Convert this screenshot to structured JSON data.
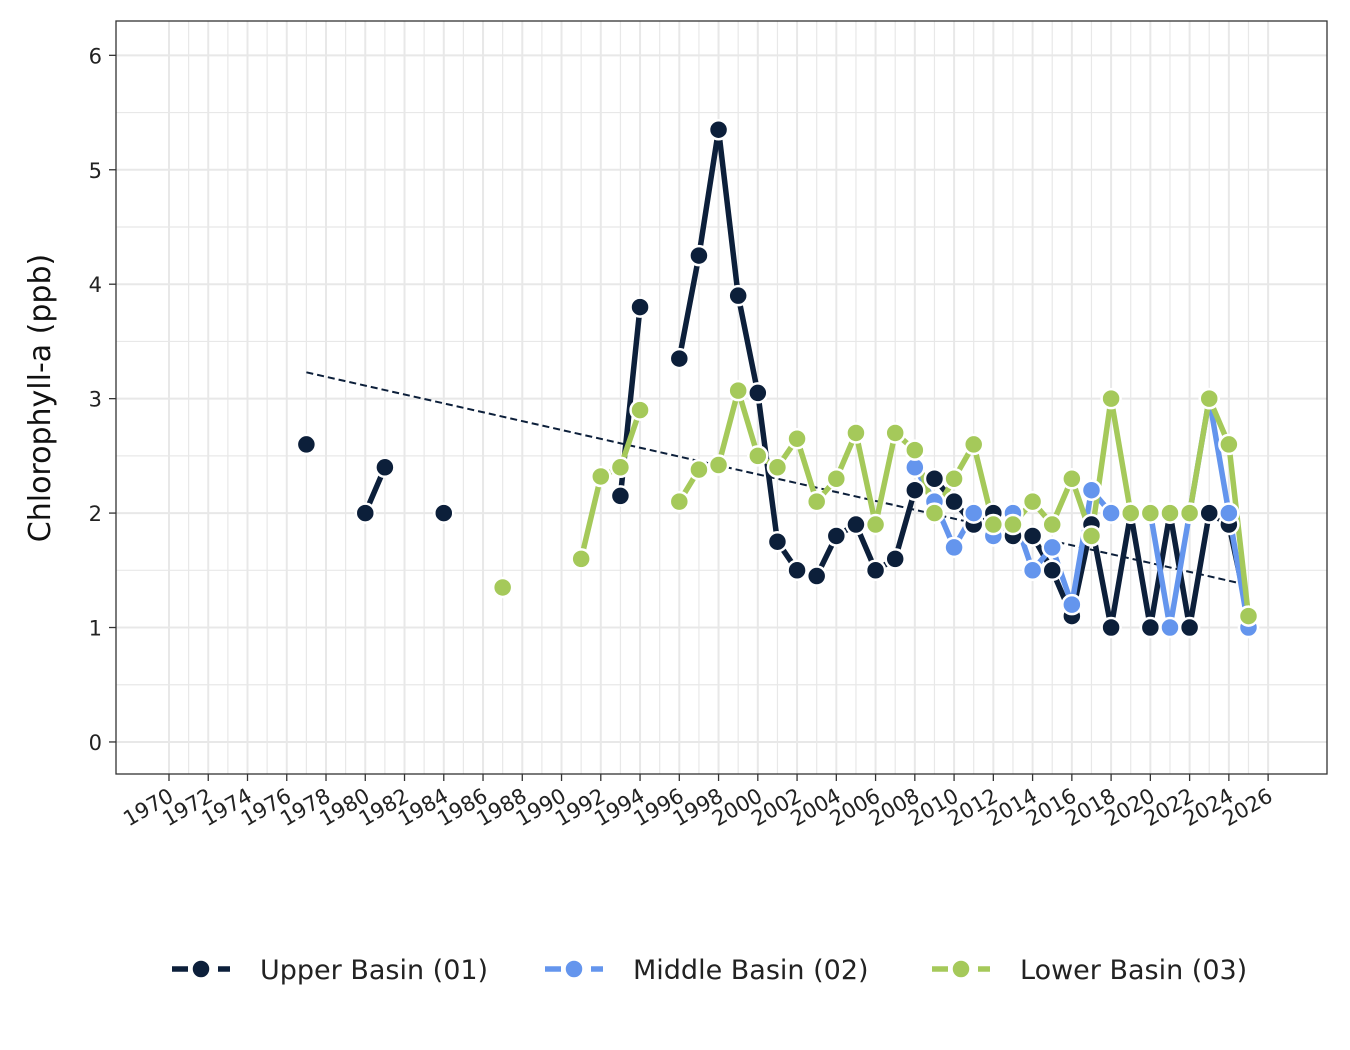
{
  "chart_data": {
    "type": "line",
    "title": "",
    "xlabel": "",
    "ylabel": "Chlorophyll-a (ppb)",
    "xlim": [
      1967.3,
      2029.0
    ],
    "ylim": [
      -0.28,
      6.3
    ],
    "x_ticks": [
      1970,
      1972,
      1974,
      1976,
      1978,
      1980,
      1982,
      1984,
      1986,
      1988,
      1990,
      1992,
      1994,
      1996,
      1998,
      2000,
      2002,
      2004,
      2006,
      2008,
      2010,
      2012,
      2014,
      2016,
      2018,
      2020,
      2022,
      2024,
      2026
    ],
    "y_ticks": [
      0,
      1,
      2,
      3,
      4,
      5,
      6
    ],
    "grid": true,
    "legend_position": "bottom",
    "colors": {
      "upper": "#0c1f3a",
      "middle": "#6495ed",
      "lower": "#a5c95a",
      "trend": "#0c1f3a",
      "grid": "#e8e8e8"
    },
    "series": [
      {
        "id": "upper",
        "name": "Upper Basin (01)",
        "points": [
          [
            1977,
            2.6
          ],
          [
            1980,
            2.0
          ],
          [
            1981,
            2.4
          ],
          [
            1984,
            2.0
          ],
          [
            1993,
            2.15
          ],
          [
            1994,
            3.8
          ],
          [
            1996,
            3.35
          ],
          [
            1997,
            4.25
          ],
          [
            1998,
            5.35
          ],
          [
            1999,
            3.9
          ],
          [
            2000,
            3.05
          ],
          [
            2001,
            1.75
          ],
          [
            2002,
            1.5
          ],
          [
            2003,
            1.45
          ],
          [
            2004,
            1.8
          ],
          [
            2005,
            1.9
          ],
          [
            2006,
            1.5
          ],
          [
            2007,
            1.6
          ],
          [
            2008,
            2.2
          ],
          [
            2009,
            2.3
          ],
          [
            2010,
            2.1
          ],
          [
            2011,
            1.9
          ],
          [
            2012,
            2.0
          ],
          [
            2013,
            1.8
          ],
          [
            2014,
            1.8
          ],
          [
            2015,
            1.5
          ],
          [
            2016,
            1.1
          ],
          [
            2017,
            1.9
          ],
          [
            2018,
            1.0
          ],
          [
            2019,
            2.0
          ],
          [
            2020,
            1.0
          ],
          [
            2021,
            2.0
          ],
          [
            2022,
            1.0
          ],
          [
            2023,
            2.0
          ],
          [
            2024,
            1.9
          ],
          [
            2025,
            1.1
          ]
        ]
      },
      {
        "id": "middle",
        "name": "Middle Basin (02)",
        "points": [
          [
            2008,
            2.4
          ],
          [
            2009,
            2.1
          ],
          [
            2010,
            1.7
          ],
          [
            2011,
            2.0
          ],
          [
            2012,
            1.8
          ],
          [
            2013,
            2.0
          ],
          [
            2014,
            1.5
          ],
          [
            2015,
            1.7
          ],
          [
            2016,
            1.2
          ],
          [
            2017,
            2.2
          ],
          [
            2018,
            2.0
          ],
          [
            2019,
            2.0
          ],
          [
            2020,
            2.0
          ],
          [
            2021,
            1.0
          ],
          [
            2022,
            2.0
          ],
          [
            2023,
            3.0
          ],
          [
            2024,
            2.0
          ],
          [
            2025,
            1.0
          ]
        ]
      },
      {
        "id": "lower",
        "name": "Lower Basin (03)",
        "points": [
          [
            1987,
            1.35
          ],
          [
            1991,
            1.6
          ],
          [
            1992,
            2.32
          ],
          [
            1993,
            2.4
          ],
          [
            1994,
            2.9
          ],
          [
            1996,
            2.1
          ],
          [
            1997,
            2.38
          ],
          [
            1998,
            2.42
          ],
          [
            1999,
            3.07
          ],
          [
            2000,
            2.5
          ],
          [
            2001,
            2.4
          ],
          [
            2002,
            2.65
          ],
          [
            2003,
            2.1
          ],
          [
            2004,
            2.3
          ],
          [
            2005,
            2.7
          ],
          [
            2006,
            1.9
          ],
          [
            2007,
            2.7
          ],
          [
            2008,
            2.55
          ],
          [
            2009,
            2.0
          ],
          [
            2010,
            2.3
          ],
          [
            2011,
            2.6
          ],
          [
            2012,
            1.9
          ],
          [
            2013,
            1.9
          ],
          [
            2014,
            2.1
          ],
          [
            2015,
            1.9
          ],
          [
            2016,
            2.3
          ],
          [
            2017,
            1.8
          ],
          [
            2018,
            3.0
          ],
          [
            2019,
            2.0
          ],
          [
            2020,
            2.0
          ],
          [
            2021,
            2.0
          ],
          [
            2022,
            2.0
          ],
          [
            2023,
            3.0
          ],
          [
            2024,
            2.6
          ],
          [
            2025,
            1.1
          ]
        ]
      }
    ],
    "trend_line": {
      "series": "upper",
      "style": "dashed",
      "x": [
        1977,
        2025
      ],
      "y": [
        3.23,
        1.37
      ]
    }
  }
}
